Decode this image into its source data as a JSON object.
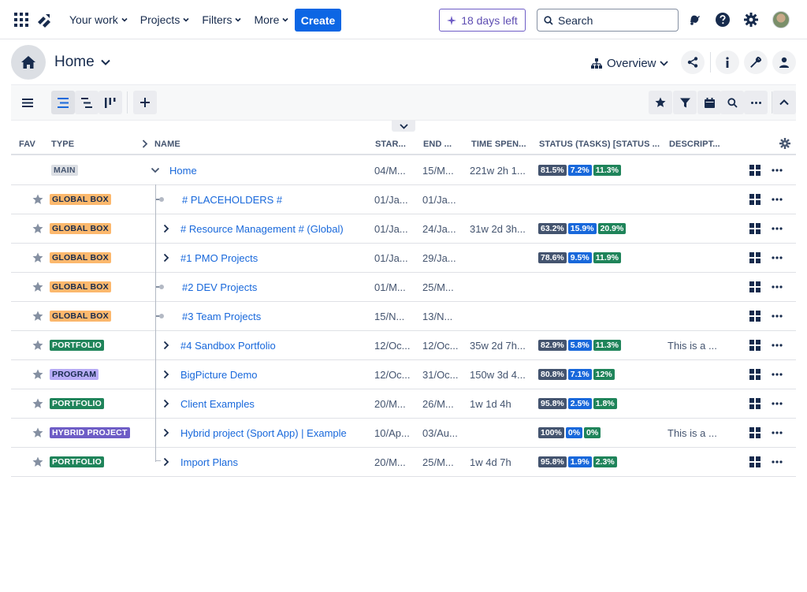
{
  "topnav": {
    "menu": [
      {
        "label": "Your work"
      },
      {
        "label": "Projects"
      },
      {
        "label": "Filters"
      },
      {
        "label": "More"
      }
    ],
    "create_label": "Create",
    "trial_label": "18 days left",
    "search_placeholder": "Search"
  },
  "header": {
    "title": "Home",
    "view_label": "Overview"
  },
  "table": {
    "columns": {
      "fav": "FAV",
      "type": "TYPE",
      "name": "NAME",
      "start": "STAR...",
      "end": "END ...",
      "time": "TIME SPEN...",
      "status": "STATUS (TASKS) [STATUS ...",
      "desc": "DESCRIPT..."
    },
    "rows": [
      {
        "type": "MAIN",
        "name": "Home",
        "start": "04/M...",
        "end": "15/M...",
        "time": "221w 2h 1...",
        "status": [
          "81.5%",
          "7.2%",
          "11.3%"
        ],
        "desc": ""
      },
      {
        "type": "GLOBAL BOX",
        "name": "# PLACEHOLDERS #",
        "start": "01/Ja...",
        "end": "01/Ja...",
        "time": "",
        "status": [],
        "desc": ""
      },
      {
        "type": "GLOBAL BOX",
        "name": "# Resource Management # (Global)",
        "start": "01/Ja...",
        "end": "24/Ja...",
        "time": "31w 2d 3h...",
        "status": [
          "63.2%",
          "15.9%",
          "20.9%"
        ],
        "desc": ""
      },
      {
        "type": "GLOBAL BOX",
        "name": "#1 PMO Projects",
        "start": "01/Ja...",
        "end": "29/Ja...",
        "time": "",
        "status": [
          "78.6%",
          "9.5%",
          "11.9%"
        ],
        "desc": ""
      },
      {
        "type": "GLOBAL BOX",
        "name": "#2 DEV Projects",
        "start": "01/M...",
        "end": "25/M...",
        "time": "",
        "status": [],
        "desc": ""
      },
      {
        "type": "GLOBAL BOX",
        "name": "#3 Team Projects",
        "start": "15/N...",
        "end": "13/N...",
        "time": "",
        "status": [],
        "desc": ""
      },
      {
        "type": "PORTFOLIO",
        "name": "#4 Sandbox Portfolio",
        "start": "12/Oc...",
        "end": "12/Oc...",
        "time": "35w 2d 7h...",
        "status": [
          "82.9%",
          "5.8%",
          "11.3%"
        ],
        "desc": "This is a ..."
      },
      {
        "type": "PROGRAM",
        "name": "BigPicture Demo",
        "start": "12/Oc...",
        "end": "31/Oc...",
        "time": "150w 3d 4...",
        "status": [
          "80.8%",
          "7.1%",
          "12%"
        ],
        "desc": ""
      },
      {
        "type": "PORTFOLIO",
        "name": "Client Examples",
        "start": "20/M...",
        "end": "26/M...",
        "time": "1w 1d 4h",
        "status": [
          "95.8%",
          "2.5%",
          "1.8%"
        ],
        "desc": ""
      },
      {
        "type": "HYBRID PROJECT",
        "name": "Hybrid project (Sport App) | Example",
        "start": "10/Ap...",
        "end": "03/Au...",
        "time": "",
        "status": [
          "100%",
          "0%",
          "0%"
        ],
        "desc": "This is a ..."
      },
      {
        "type": "PORTFOLIO",
        "name": "Import Plans",
        "start": "20/M...",
        "end": "25/M...",
        "time": "1w 4d 7h",
        "status": [
          "95.8%",
          "1.9%",
          "2.3%"
        ],
        "desc": ""
      }
    ]
  },
  "colors": {
    "primary": "#0c66e4",
    "link": "#1868db",
    "status_done": "#44546f",
    "status_progress": "#1868db",
    "status_todo": "#1f845a",
    "badge_main": "#dcdfe4",
    "badge_global_box": "#fcb86d",
    "badge_portfolio": "#1f845a",
    "badge_program": "#b8acf6",
    "badge_hybrid": "#6e5dc6"
  },
  "icons": {
    "apps": "app-switcher-icon",
    "logo": "product-logo-icon",
    "notifications": "bell-icon",
    "help": "help-icon",
    "settings": "gear-icon",
    "home": "home-icon",
    "share": "share-icon",
    "info": "info-icon",
    "admin": "wrench-icon",
    "user": "user-icon"
  }
}
